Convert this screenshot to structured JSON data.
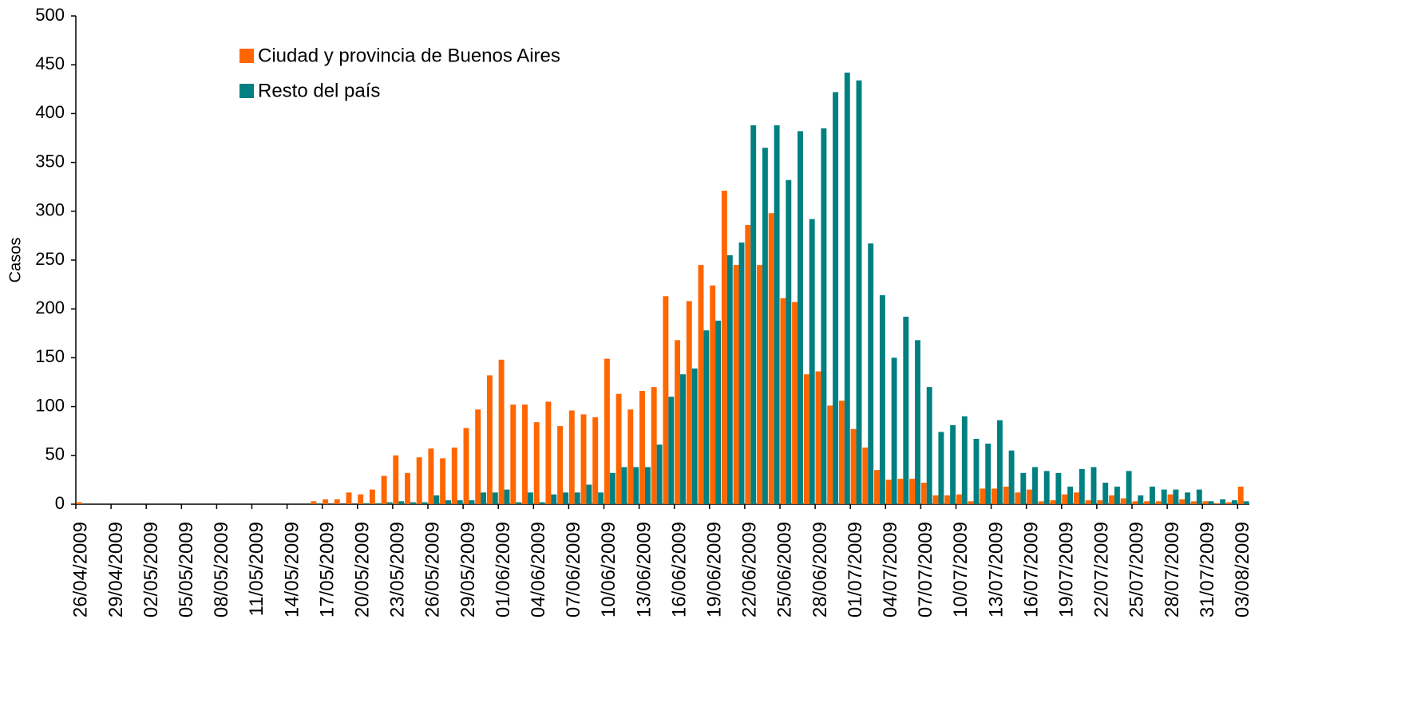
{
  "chart_data": {
    "type": "bar",
    "y_label": "Casos",
    "categories": [
      "26/04/2009",
      null,
      null,
      "29/04/2009",
      null,
      null,
      "02/05/2009",
      null,
      null,
      "05/05/2009",
      null,
      null,
      "08/05/2009",
      null,
      null,
      "11/05/2009",
      null,
      null,
      "14/05/2009",
      null,
      null,
      "17/05/2009",
      null,
      null,
      "20/05/2009",
      null,
      null,
      "23/05/2009",
      null,
      null,
      "26/05/2009",
      null,
      null,
      "29/05/2009",
      null,
      null,
      "01/06/2009",
      null,
      null,
      "04/06/2009",
      null,
      null,
      "07/06/2009",
      null,
      null,
      "10/06/2009",
      null,
      null,
      "13/06/2009",
      null,
      null,
      "16/06/2009",
      null,
      null,
      "19/06/2009",
      null,
      null,
      "22/06/2009",
      null,
      null,
      "25/06/2009",
      null,
      null,
      "28/06/2009",
      null,
      null,
      "01/07/2009",
      null,
      null,
      "04/07/2009",
      null,
      null,
      "07/07/2009",
      null,
      null,
      "10/07/2009",
      null,
      null,
      "13/07/2009",
      null,
      null,
      "16/07/2009",
      null,
      null,
      "19/07/2009",
      null,
      null,
      "22/07/2009",
      null,
      null,
      "25/07/2009",
      null,
      null,
      "28/07/2009",
      null,
      null,
      "31/07/2009",
      null,
      null,
      "03/08/2009"
    ],
    "series": [
      {
        "name": "Ciudad y provincia de Buenos Aires",
        "color": "#ff6600",
        "values": [
          2,
          0,
          0,
          0,
          0,
          0,
          0,
          0,
          0,
          0,
          0,
          0,
          0,
          0,
          0,
          0,
          0,
          0,
          0,
          0,
          3,
          5,
          5,
          12,
          10,
          15,
          29,
          50,
          32,
          48,
          57,
          47,
          58,
          78,
          97,
          132,
          148,
          102,
          102,
          84,
          105,
          80,
          96,
          92,
          89,
          149,
          113,
          97,
          116,
          120,
          213,
          168,
          208,
          245,
          224,
          321,
          245,
          286,
          245,
          298,
          211,
          207,
          133,
          136,
          101,
          106,
          77,
          58,
          35,
          25,
          26,
          26,
          22,
          9,
          9,
          10,
          3,
          16,
          16,
          18,
          12,
          15,
          3,
          4,
          10,
          12,
          4,
          4,
          9,
          6,
          3,
          3,
          3,
          10,
          5,
          3,
          3,
          1,
          2,
          18
        ]
      },
      {
        "name": "Resto del país",
        "color": "#008080",
        "values": [
          0,
          0,
          0,
          0,
          0,
          0,
          0,
          0,
          0,
          0,
          0,
          0,
          0,
          0,
          0,
          0,
          0,
          0,
          0,
          0,
          1,
          0,
          0,
          0,
          1,
          1,
          2,
          3,
          2,
          2,
          9,
          4,
          4,
          4,
          12,
          12,
          15,
          2,
          12,
          2,
          10,
          12,
          12,
          20,
          12,
          32,
          38,
          38,
          38,
          61,
          110,
          133,
          139,
          178,
          188,
          255,
          268,
          388,
          365,
          388,
          332,
          382,
          292,
          385,
          422,
          442,
          434,
          267,
          214,
          150,
          192,
          168,
          120,
          74,
          81,
          90,
          67,
          62,
          86,
          55,
          32,
          38,
          34,
          32,
          18,
          36,
          38,
          22,
          18,
          34,
          9,
          18,
          15,
          15,
          12,
          15,
          3,
          5,
          4,
          3
        ]
      }
    ],
    "ylim": [
      0,
      500
    ],
    "yticks": [
      0,
      50,
      100,
      150,
      200,
      250,
      300,
      350,
      400,
      450,
      500
    ],
    "grid": false,
    "legend": "top-left"
  }
}
